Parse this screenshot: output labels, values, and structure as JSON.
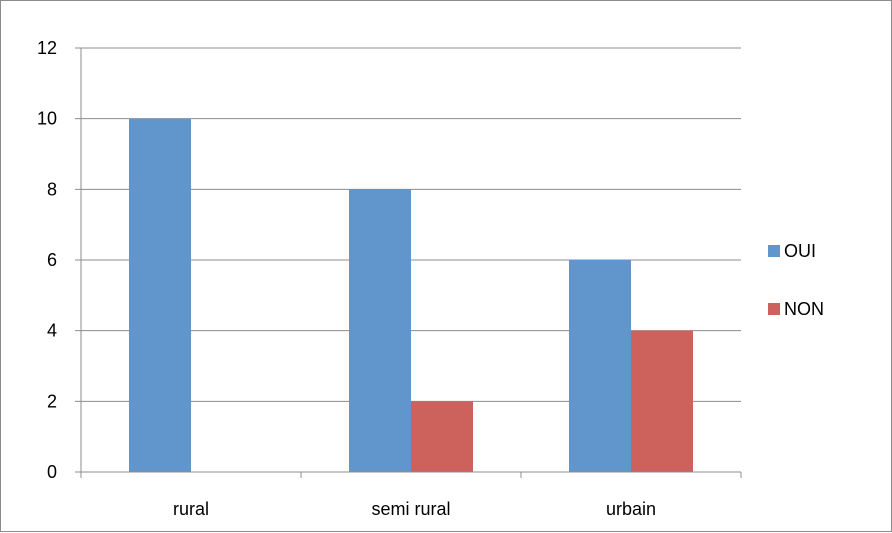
{
  "chart_data": {
    "type": "bar",
    "title": "",
    "xlabel": "",
    "ylabel": "",
    "categories": [
      "rural",
      "semi rural",
      "urbain"
    ],
    "series": [
      {
        "name": "OUI",
        "values": [
          10,
          8,
          6
        ],
        "color": "#6096CB"
      },
      {
        "name": "NON",
        "values": [
          0,
          2,
          4
        ],
        "color": "#CD625C"
      }
    ],
    "ylim": [
      0,
      12
    ],
    "yticks": [
      "0",
      "2",
      "4",
      "6",
      "8",
      "10",
      "12"
    ],
    "grid": true,
    "legend": "right"
  }
}
